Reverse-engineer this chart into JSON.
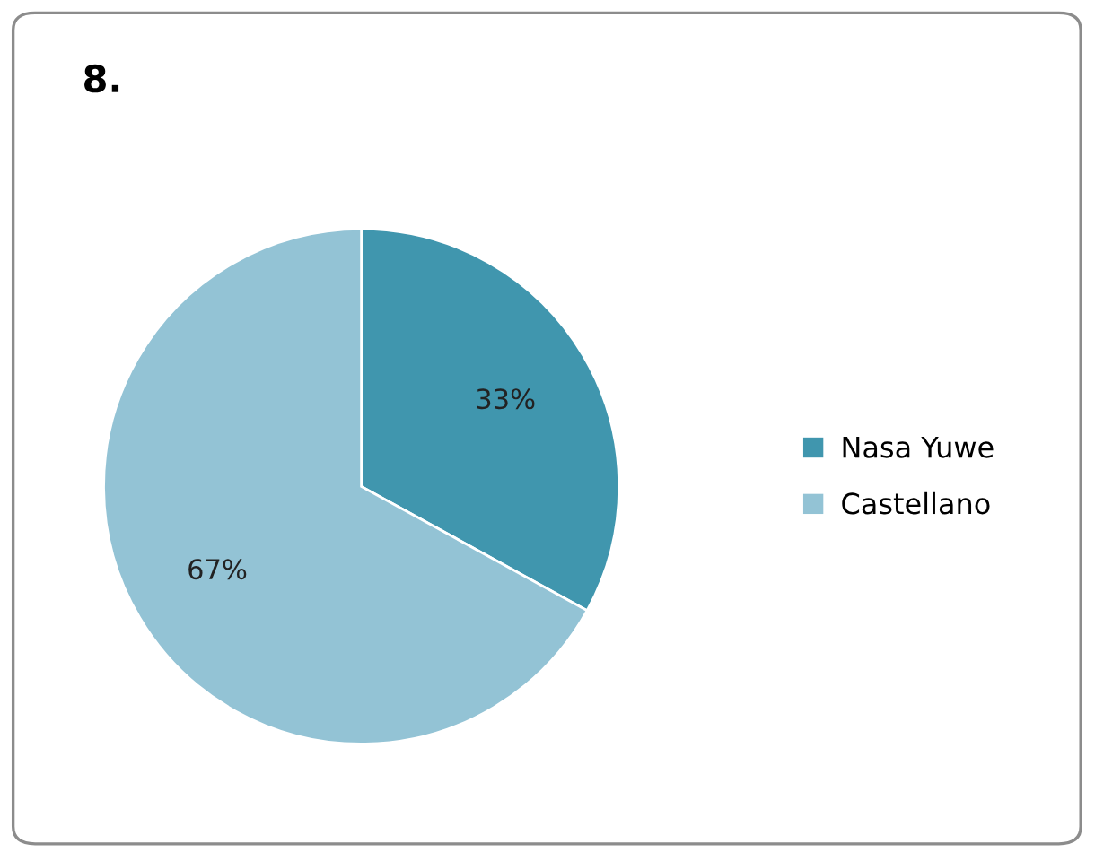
{
  "chart_data": {
    "type": "pie",
    "title": "8.",
    "categories": [
      "Nasa Yuwe",
      "Castellano"
    ],
    "values": [
      33,
      67
    ],
    "colors": [
      "#4096ae",
      "#93c3d5"
    ],
    "value_labels": [
      "33%",
      "67%"
    ],
    "legend": "right"
  }
}
